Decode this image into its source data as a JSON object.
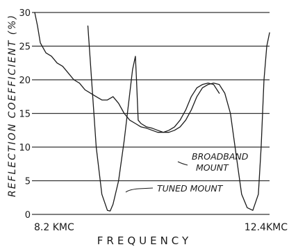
{
  "chart_data": {
    "type": "line",
    "title": "",
    "xlabel": "FREQUENCY",
    "ylabel": "REFLECTION  COEFFICIENT  (%)",
    "x_tick_labels": [
      "8.2 KMC",
      "12.4KMC"
    ],
    "xlim": [
      8.2,
      12.4
    ],
    "ylim": [
      0,
      30
    ],
    "y_ticks": [
      0,
      5,
      10,
      15,
      20,
      25,
      30
    ],
    "grid": "horizontal",
    "series": [
      {
        "name": "BROADBAND MOUNT",
        "x": [
          8.2,
          8.25,
          8.3,
          8.4,
          8.5,
          8.6,
          8.7,
          8.8,
          8.9,
          9.0,
          9.1,
          9.2,
          9.3,
          9.4,
          9.5,
          9.6,
          9.7,
          9.8,
          9.9,
          10.0,
          10.1,
          10.2,
          10.3,
          10.4,
          10.5,
          10.6,
          10.7,
          10.8,
          10.9,
          11.0,
          11.1,
          11.2,
          11.3,
          11.4,
          11.5
        ],
        "y": [
          30,
          28,
          25.5,
          24,
          23.5,
          22.5,
          22,
          21,
          20,
          19.5,
          18.5,
          18,
          17.5,
          17,
          17,
          17.5,
          16.5,
          15,
          14,
          13.5,
          13,
          12.8,
          12.5,
          12.2,
          12.2,
          12.5,
          13,
          14,
          15.5,
          17.5,
          18.8,
          19.3,
          19.5,
          19.3,
          18
        ]
      },
      {
        "name": "TUNED MOUNT",
        "x": [
          9.15,
          9.2,
          9.3,
          9.4,
          9.5,
          9.55,
          9.6,
          9.7,
          9.8,
          9.9,
          9.95,
          10.0,
          10.02,
          10.05,
          10.1,
          10.2,
          10.3,
          10.4,
          10.5,
          10.6,
          10.7,
          10.8,
          10.9,
          11.0,
          11.1,
          11.2,
          11.3,
          11.4,
          11.5,
          11.6,
          11.7,
          11.8,
          11.9,
          12.0,
          12.1,
          12.2,
          12.25,
          12.3,
          12.35,
          12.4
        ],
        "y": [
          28,
          22,
          10,
          3,
          0.6,
          0.5,
          1.5,
          5,
          11,
          18,
          21.5,
          23.5,
          20,
          14,
          13.5,
          13,
          12.8,
          12.5,
          12.2,
          12.2,
          12.5,
          13,
          14,
          15.5,
          17.5,
          18.8,
          19.3,
          19.5,
          19.3,
          18,
          15,
          9,
          3,
          1,
          0.6,
          3,
          10,
          20,
          25,
          27
        ]
      }
    ],
    "annotations": [
      {
        "text": "BROADBAND",
        "target": "BROADBAND MOUNT"
      },
      {
        "text": "MOUNT",
        "target": "BROADBAND MOUNT"
      },
      {
        "text": "TUNED  MOUNT",
        "target": "TUNED MOUNT"
      }
    ]
  }
}
